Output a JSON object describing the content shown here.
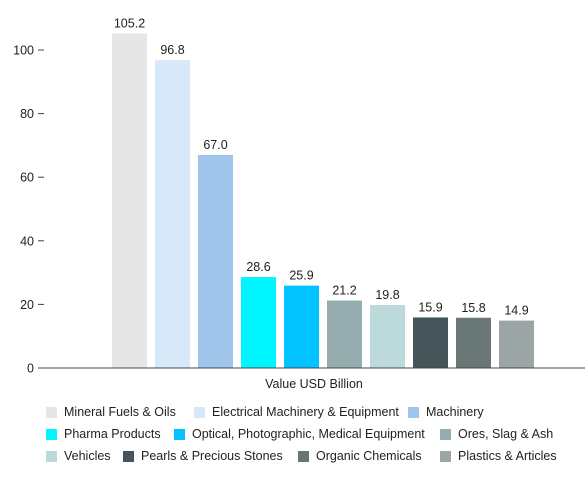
{
  "chart_data": {
    "type": "bar",
    "title": "",
    "xlabel": "Value USD Billion",
    "ylabel": "",
    "ylim": [
      0,
      110
    ],
    "yticks": [
      0,
      20,
      40,
      60,
      80,
      100
    ],
    "grid": false,
    "legend_position": "bottom",
    "categories": [
      "Mineral Fuels & Oils",
      "Electrical Machinery & Equipment",
      "Machinery",
      "Pharma Products",
      "Optical, Photographic, Medical Equipment",
      "Ores, Slag & Ash",
      "Vehicles",
      "Pearls & Precious Stones",
      "Organic Chemicals",
      "Plastics & Articles"
    ],
    "values": [
      105.2,
      96.8,
      67.0,
      28.6,
      25.9,
      21.2,
      19.8,
      15.9,
      15.8,
      14.9
    ],
    "value_labels": [
      "105.2",
      "96.8",
      "67.0",
      "28.6",
      "25.9",
      "21.2",
      "19.8",
      "15.9",
      "15.8",
      "14.9"
    ],
    "colors": [
      "#e6e6e6",
      "#d7e8f9",
      "#9fc5ea",
      "#00f5ff",
      "#00c3ff",
      "#95adae",
      "#bcdadb",
      "#465559",
      "#687676",
      "#9ba5a5"
    ]
  }
}
